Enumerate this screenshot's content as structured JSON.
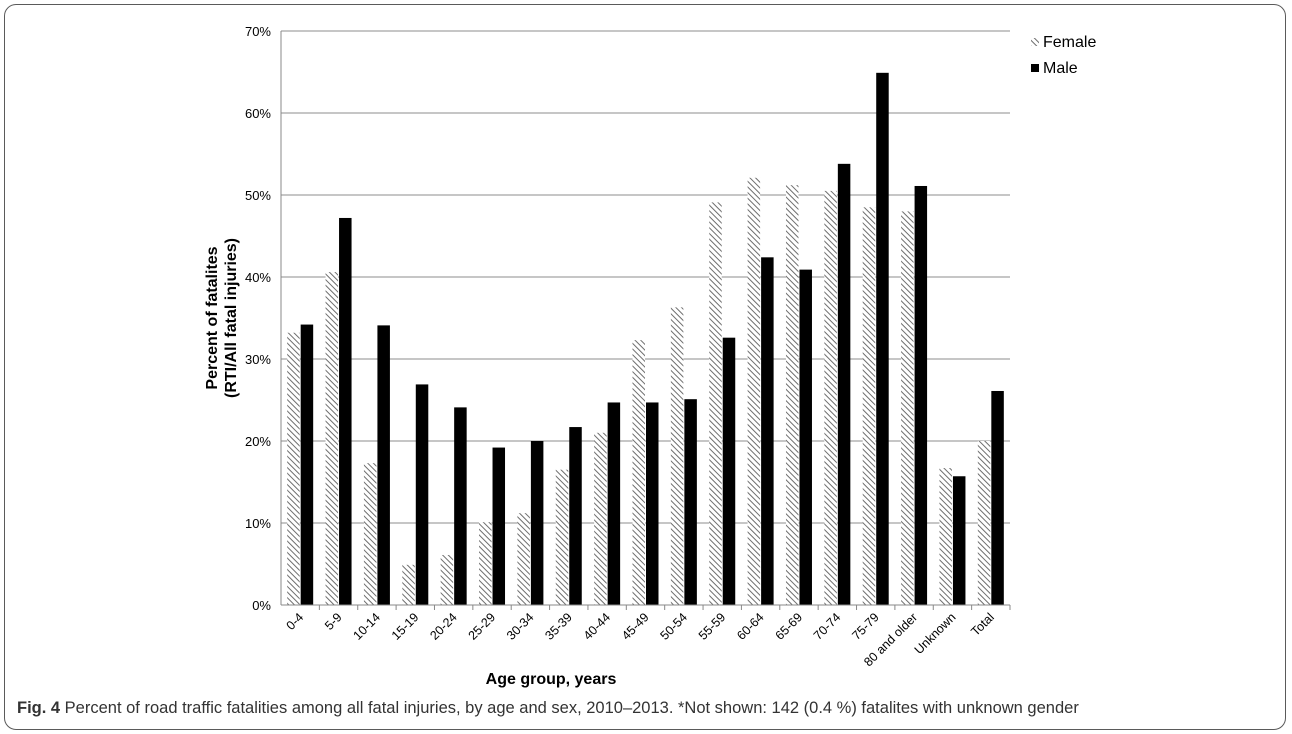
{
  "chart_data": {
    "type": "bar",
    "title": "",
    "xlabel": "Age group, years",
    "ylabel_line1": "Percent of fatalites",
    "ylabel_line2": "(RTI/All fatal injuries)",
    "ylim": [
      0,
      70
    ],
    "yticks": [
      "0%",
      "10%",
      "20%",
      "30%",
      "40%",
      "50%",
      "60%",
      "70%"
    ],
    "grid": true,
    "legend": "top-right",
    "categories": [
      "0-4",
      "5-9",
      "10-14",
      "15-19",
      "20-24",
      "25-29",
      "30-34",
      "35-39",
      "40-44",
      "45-49",
      "50-54",
      "55-59",
      "60-64",
      "65-69",
      "70-74",
      "75-79",
      "80 and older",
      "Unknown",
      "Total"
    ],
    "series": [
      {
        "name": "Female",
        "pattern": "hatched",
        "color": "#7a7a7a",
        "values": [
          33.2,
          40.6,
          17.3,
          4.9,
          6.1,
          10.1,
          11.2,
          16.5,
          21.0,
          32.3,
          36.3,
          49.1,
          52.1,
          51.2,
          50.5,
          48.5,
          48.0,
          16.7,
          20.0
        ]
      },
      {
        "name": "Male",
        "pattern": "solid",
        "color": "#000000",
        "values": [
          34.2,
          47.2,
          34.1,
          26.9,
          24.1,
          19.2,
          20.0,
          21.7,
          24.7,
          24.7,
          25.1,
          32.6,
          42.4,
          40.9,
          53.8,
          64.9,
          51.1,
          15.7,
          26.1
        ]
      }
    ]
  },
  "caption": {
    "fig_label": "Fig. 4",
    "text": " Percent of road traffic fatalities among all fatal injuries, by age and sex, 2010–2013. *Not shown: 142 (0.4 %) fatalites with unknown gender"
  }
}
